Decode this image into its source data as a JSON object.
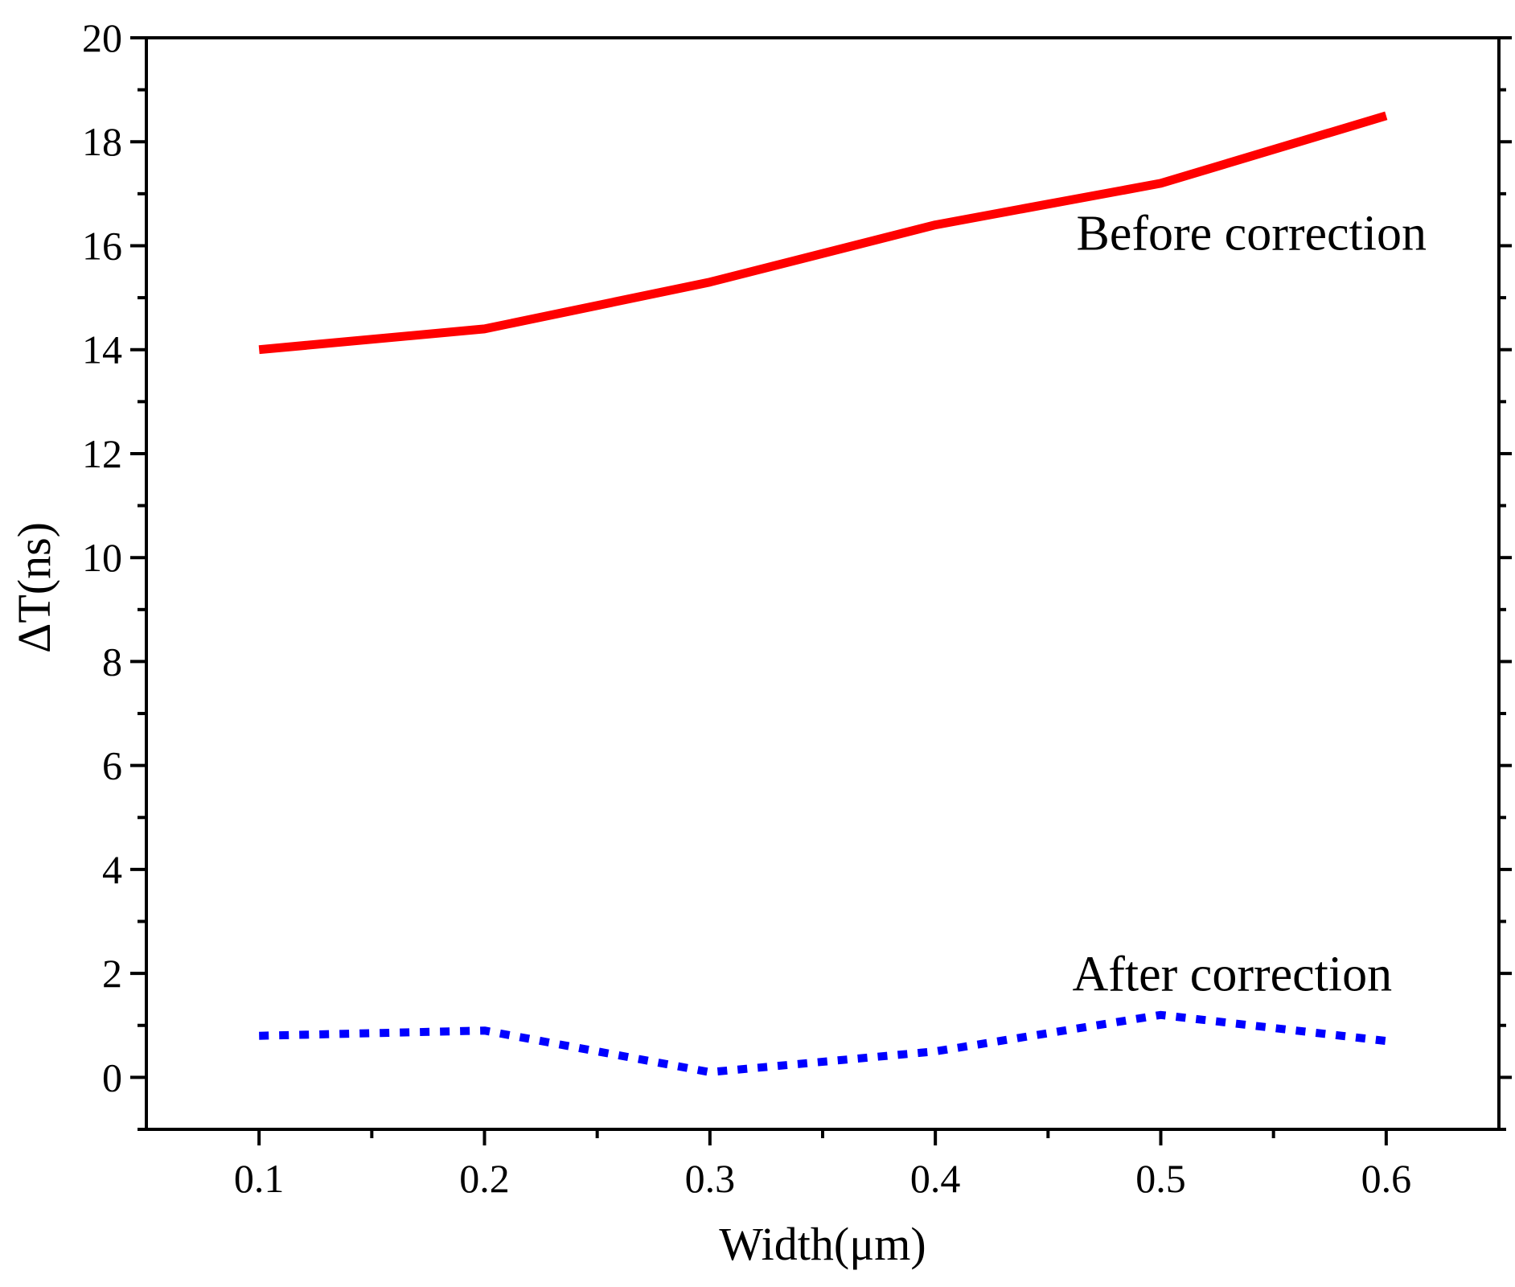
{
  "chart_data": {
    "type": "line",
    "title": "",
    "xlabel": "Width(μm)",
    "ylabel": "ΔT(ns)",
    "xlim": [
      0.05,
      0.65
    ],
    "ylim": [
      -1,
      20
    ],
    "x_ticks": [
      0.1,
      0.2,
      0.3,
      0.4,
      0.5,
      0.6
    ],
    "x_tick_labels": [
      "0.1",
      "0.2",
      "0.3",
      "0.4",
      "0.5",
      "0.6"
    ],
    "y_ticks": [
      0,
      2,
      4,
      6,
      8,
      10,
      12,
      14,
      16,
      18,
      20
    ],
    "y_tick_labels": [
      "0",
      "2",
      "4",
      "6",
      "8",
      "10",
      "12",
      "14",
      "16",
      "18",
      "20"
    ],
    "grid": false,
    "series": [
      {
        "name": "Before correction",
        "color": "#ff0000",
        "style": "solid",
        "x": [
          0.1,
          0.2,
          0.3,
          0.4,
          0.5,
          0.6
        ],
        "y": [
          14.0,
          14.4,
          15.3,
          16.4,
          17.2,
          18.5
        ]
      },
      {
        "name": "After correction",
        "color": "#0000ff",
        "style": "dotted",
        "x": [
          0.1,
          0.2,
          0.3,
          0.4,
          0.5,
          0.6
        ],
        "y": [
          0.8,
          0.9,
          0.1,
          0.5,
          1.2,
          0.7
        ]
      }
    ],
    "annotations": [
      {
        "text": "Before correction",
        "series": "Before correction"
      },
      {
        "text": "After correction",
        "series": "After correction"
      }
    ]
  }
}
